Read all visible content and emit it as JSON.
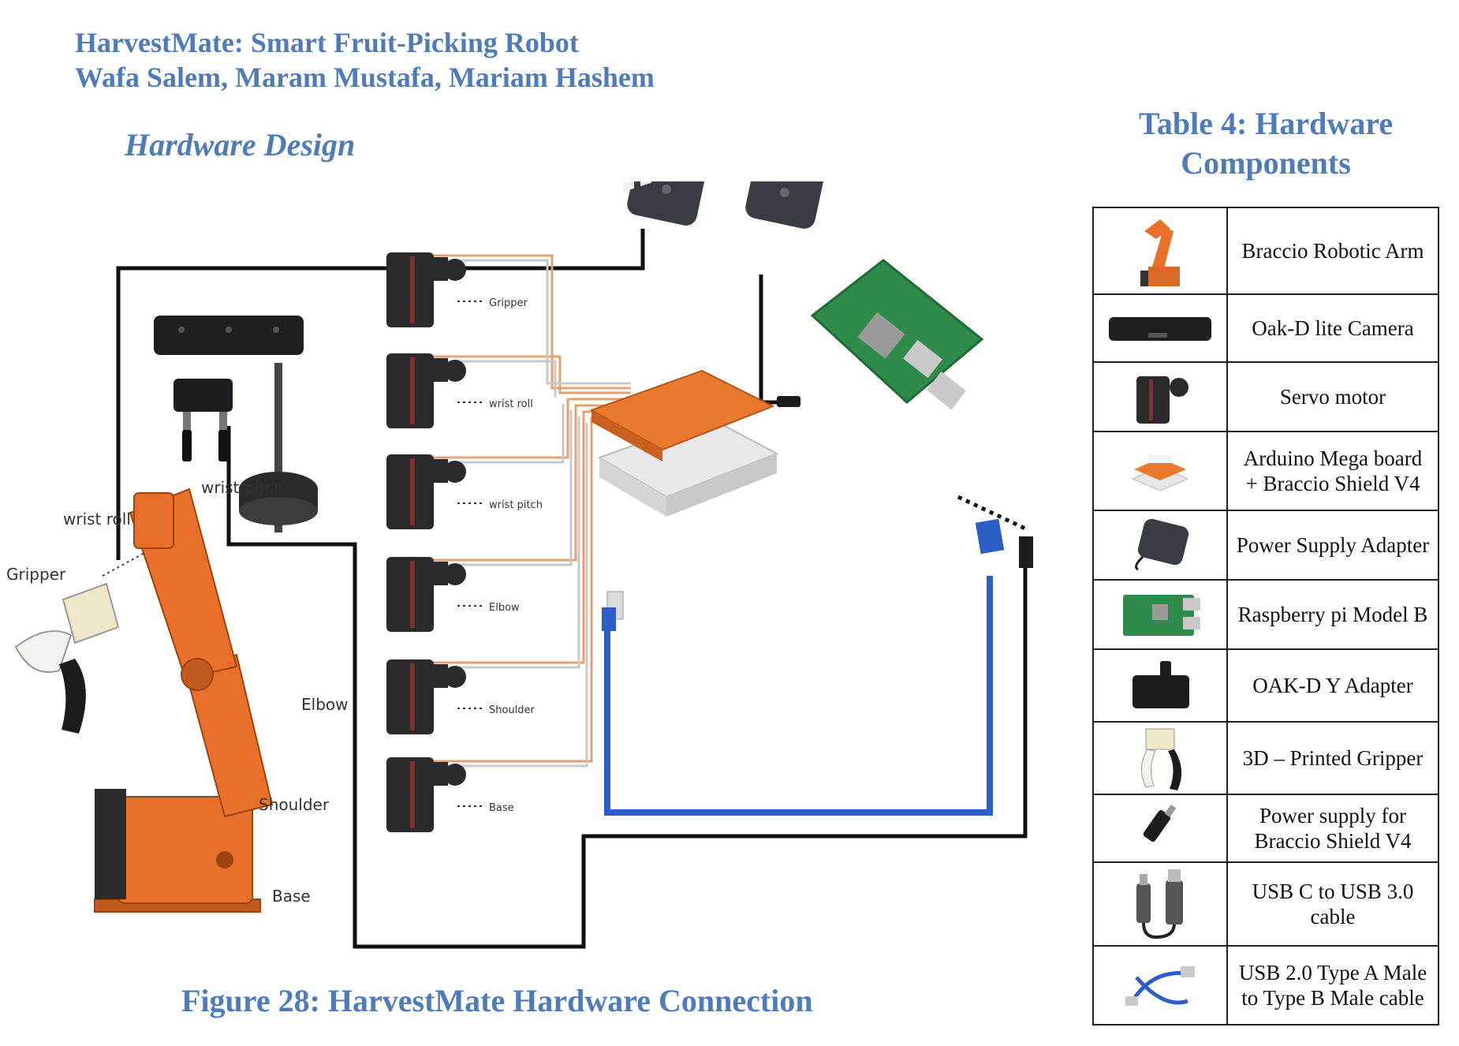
{
  "header": {
    "title": "HarvestMate: Smart Fruit-Picking Robot",
    "authors": "Wafa Salem, Maram Mustafa, Mariam Hashem"
  },
  "section_title": "Hardware Design",
  "figure": {
    "caption": "Figure 28: HarvestMate Hardware Connection",
    "arm_labels": {
      "wrist_pitch": "wrist pitch",
      "wrist_roll": "wrist roll",
      "gripper": "Gripper",
      "elbow": "Elbow",
      "shoulder": "Shoulder",
      "base": "Base"
    },
    "servo_labels": [
      "Gripper",
      "wrist roll",
      "wrist pitch",
      "Elbow",
      "Shoulder",
      "Base"
    ]
  },
  "table": {
    "caption": "Table 4: Hardware Components",
    "rows": [
      {
        "name": "Braccio Robotic Arm",
        "icon": "robotic-arm-icon"
      },
      {
        "name": "Oak-D lite Camera",
        "icon": "camera-icon"
      },
      {
        "name": "Servo motor",
        "icon": "servo-icon"
      },
      {
        "name": "Arduino Mega board + Braccio Shield V4",
        "icon": "arduino-board-icon"
      },
      {
        "name": "Power Supply Adapter",
        "icon": "power-adapter-icon"
      },
      {
        "name": "Raspberry pi Model B",
        "icon": "raspberry-pi-icon"
      },
      {
        "name": "OAK-D Y Adapter",
        "icon": "y-adapter-icon"
      },
      {
        "name": "3D – Printed Gripper",
        "icon": "gripper-icon"
      },
      {
        "name": "Power supply for Braccio Shield V4",
        "icon": "dc-plug-icon"
      },
      {
        "name": "USB C to USB 3.0 cable",
        "icon": "usb-c-cable-icon"
      },
      {
        "name": "USB 2.0 Type A Male to Type B Male cable",
        "icon": "usb-ab-cable-icon"
      }
    ]
  }
}
